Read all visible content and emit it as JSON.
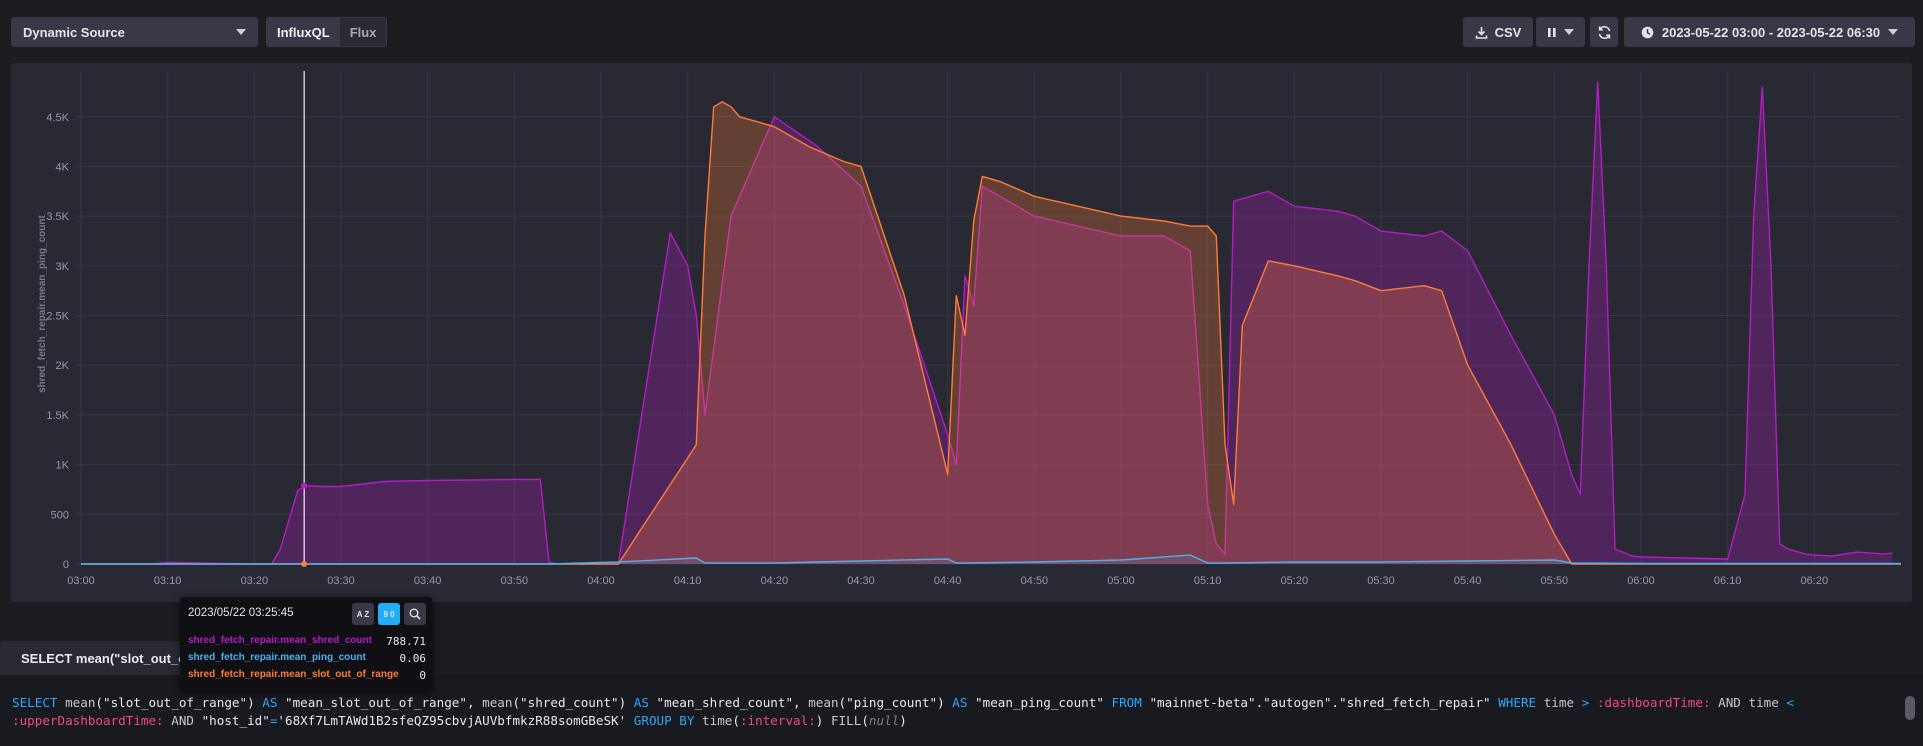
{
  "toolbar": {
    "source_label": "Dynamic Source",
    "lang_influxql": "InfluxQL",
    "lang_flux": "Flux",
    "csv_label": "CSV",
    "time_range": "2023-05-22 03:00 - 2023-05-22 06:30"
  },
  "colors": {
    "shred": "#b41cc4",
    "ping": "#4ab2ee",
    "slot": "#ff7c38",
    "background": "#292933"
  },
  "chart_data": {
    "type": "area",
    "ylabel": "shred_fetch_repair.mean_ping_count",
    "ylim": [
      0,
      4900
    ],
    "yticks": [
      0,
      500,
      1000,
      1500,
      2000,
      2500,
      3000,
      3500,
      4000,
      4500
    ],
    "ytick_labels": [
      "0",
      "500",
      "1K",
      "1.5K",
      "2K",
      "2.5K",
      "3K",
      "3.5K",
      "4K",
      "4.5K"
    ],
    "xlim_minutes": [
      0,
      210
    ],
    "xticks_minutes": [
      0,
      10,
      20,
      30,
      40,
      50,
      60,
      70,
      80,
      90,
      100,
      110,
      120,
      130,
      140,
      150,
      160,
      170,
      180,
      190,
      200
    ],
    "xtick_labels": [
      "03:00",
      "03:10",
      "03:20",
      "03:30",
      "03:40",
      "03:50",
      "04:00",
      "04:10",
      "04:20",
      "04:30",
      "04:40",
      "04:50",
      "05:00",
      "05:10",
      "05:20",
      "05:30",
      "05:40",
      "05:50",
      "06:00",
      "06:10",
      "06:20"
    ],
    "series": [
      {
        "name": "shred_fetch_repair.mean_shred_count",
        "color": "#b41cc4",
        "x": [
          0,
          8,
          10,
          20,
          22,
          23,
          25,
          26,
          28,
          30,
          31,
          35,
          40,
          45,
          50,
          53,
          54,
          55,
          56,
          62,
          68,
          70,
          71,
          72,
          75,
          80,
          85,
          90,
          95,
          100,
          101,
          102,
          103,
          104,
          106,
          110,
          115,
          120,
          125,
          128,
          130,
          131,
          132,
          133,
          137,
          140,
          145,
          147,
          150,
          155,
          157,
          160,
          165,
          170,
          172,
          173,
          174,
          175,
          176,
          177,
          179,
          180,
          185,
          190,
          192,
          193,
          194,
          195,
          196,
          197,
          199,
          200,
          202,
          205,
          208,
          209
        ],
        "values": [
          0,
          0,
          15,
          0,
          0,
          150,
          740,
          788,
          780,
          780,
          790,
          830,
          840,
          845,
          850,
          850,
          20,
          0,
          0,
          0,
          3330,
          3000,
          2500,
          1500,
          3500,
          4500,
          4200,
          3800,
          2600,
          1300,
          1000,
          2900,
          2600,
          3800,
          3700,
          3500,
          3400,
          3300,
          3300,
          3150,
          600,
          200,
          100,
          3650,
          3750,
          3600,
          3550,
          3500,
          3350,
          3300,
          3350,
          3150,
          2300,
          1500,
          900,
          700,
          3000,
          4850,
          3000,
          150,
          80,
          70,
          60,
          50,
          700,
          3500,
          4800,
          3000,
          200,
          150,
          100,
          90,
          80,
          120,
          100,
          110
        ]
      },
      {
        "name": "shred_fetch_repair.mean_slot_out_of_range",
        "color": "#ff7c38",
        "x": [
          0,
          54,
          62,
          71,
          72,
          73,
          74,
          75,
          76,
          78,
          80,
          84,
          88,
          90,
          95,
          100,
          101,
          102,
          103,
          104,
          106,
          110,
          115,
          120,
          125,
          128,
          130,
          131,
          132,
          133,
          134,
          137,
          140,
          145,
          147,
          150,
          155,
          157,
          160,
          165,
          170,
          172,
          175,
          180,
          210
        ],
        "values": [
          0,
          0,
          0,
          1200,
          3300,
          4600,
          4650,
          4600,
          4500,
          4450,
          4400,
          4200,
          4050,
          4000,
          2700,
          900,
          2700,
          2300,
          3450,
          3900,
          3850,
          3700,
          3600,
          3500,
          3450,
          3400,
          3400,
          3300,
          1200,
          600,
          2400,
          3050,
          3000,
          2900,
          2850,
          2750,
          2800,
          2750,
          2000,
          1200,
          300,
          0,
          0,
          0,
          0
        ]
      },
      {
        "name": "shred_fetch_repair.mean_ping_count",
        "color": "#4ab2ee",
        "x": [
          0,
          54,
          62,
          71,
          72,
          80,
          90,
          100,
          101,
          102,
          110,
          120,
          128,
          130,
          131,
          132,
          140,
          150,
          160,
          170,
          172,
          180,
          210
        ],
        "values": [
          0,
          0,
          20,
          60,
          10,
          10,
          30,
          50,
          10,
          10,
          20,
          40,
          90,
          10,
          10,
          10,
          20,
          20,
          30,
          40,
          10,
          5,
          5
        ]
      }
    ],
    "cursor_time": "2023/05/22 03:25:45",
    "cursor_minutes": 25.75
  },
  "tooltip": {
    "time": "2023/05/22 03:25:45",
    "sort_az": "A Z",
    "sort_09": "9 0",
    "rows": [
      {
        "label": "shred_fetch_repair.mean_shred_count",
        "value": "788.71"
      },
      {
        "label": "shred_fetch_repair.mean_ping_count",
        "value": "0.06"
      },
      {
        "label": "shred_fetch_repair.mean_slot_out_of_range",
        "value": "0"
      }
    ]
  },
  "query": {
    "tab_label": "SELECT mean(\"slot_out_of_range\") AS \"mean_slot_out_of_range\", mean(\"shred_count\") AS \"mean_shred_count\", mean(\"ping_count\") AS",
    "tokens": [
      {
        "t": "SELECT ",
        "c": "q-kw"
      },
      {
        "t": "mean",
        "c": "q-fn"
      },
      {
        "t": "(\"slot_out_of_range\") ",
        "c": "q-str"
      },
      {
        "t": "AS ",
        "c": "q-kw"
      },
      {
        "t": "\"mean_slot_out_of_range\", ",
        "c": "q-str"
      },
      {
        "t": "mean",
        "c": "q-fn"
      },
      {
        "t": "(\"shred_count\") ",
        "c": "q-str"
      },
      {
        "t": "AS ",
        "c": "q-kw"
      },
      {
        "t": "\"mean_shred_count\", ",
        "c": "q-str"
      },
      {
        "t": "mean",
        "c": "q-fn"
      },
      {
        "t": "(\"ping_count\") ",
        "c": "q-str"
      },
      {
        "t": "AS ",
        "c": "q-kw"
      },
      {
        "t": "\"mean_ping_count\" ",
        "c": "q-str"
      },
      {
        "t": "FROM ",
        "c": "q-kw"
      },
      {
        "t": "\"mainnet-beta\".\"autogen\".\"shred_fetch_repair\" ",
        "c": "q-str"
      },
      {
        "t": "WHERE ",
        "c": "q-kw"
      },
      {
        "t": "time ",
        "c": "q-fn"
      },
      {
        "t": "> ",
        "c": "q-op"
      },
      {
        "t": ":dashboardTime: ",
        "c": "q-tmpl"
      },
      {
        "t": "AND ",
        "c": "q-fn"
      },
      {
        "t": "time ",
        "c": "q-fn"
      },
      {
        "t": "< ",
        "c": "q-op"
      },
      {
        "t": ":upperDashboardTime: ",
        "c": "q-tmpl"
      },
      {
        "t": "AND ",
        "c": "q-fn"
      },
      {
        "t": "\"host_id\"",
        "c": "q-str"
      },
      {
        "t": "=",
        "c": "q-op"
      },
      {
        "t": "'68Xf7LmTAWd1B2sfeQZ95cbvjAUVbfmkzR88somGBeSK' ",
        "c": "q-str"
      },
      {
        "t": "GROUP BY ",
        "c": "q-kw"
      },
      {
        "t": "time",
        "c": "q-fn"
      },
      {
        "t": "(",
        "c": "q-str"
      },
      {
        "t": ":interval:",
        "c": "q-tmpl"
      },
      {
        "t": ") ",
        "c": "q-str"
      },
      {
        "t": "FILL",
        "c": "q-fn"
      },
      {
        "t": "(",
        "c": "q-str"
      },
      {
        "t": "null",
        "c": "q-null"
      },
      {
        "t": ")",
        "c": "q-str"
      }
    ]
  }
}
